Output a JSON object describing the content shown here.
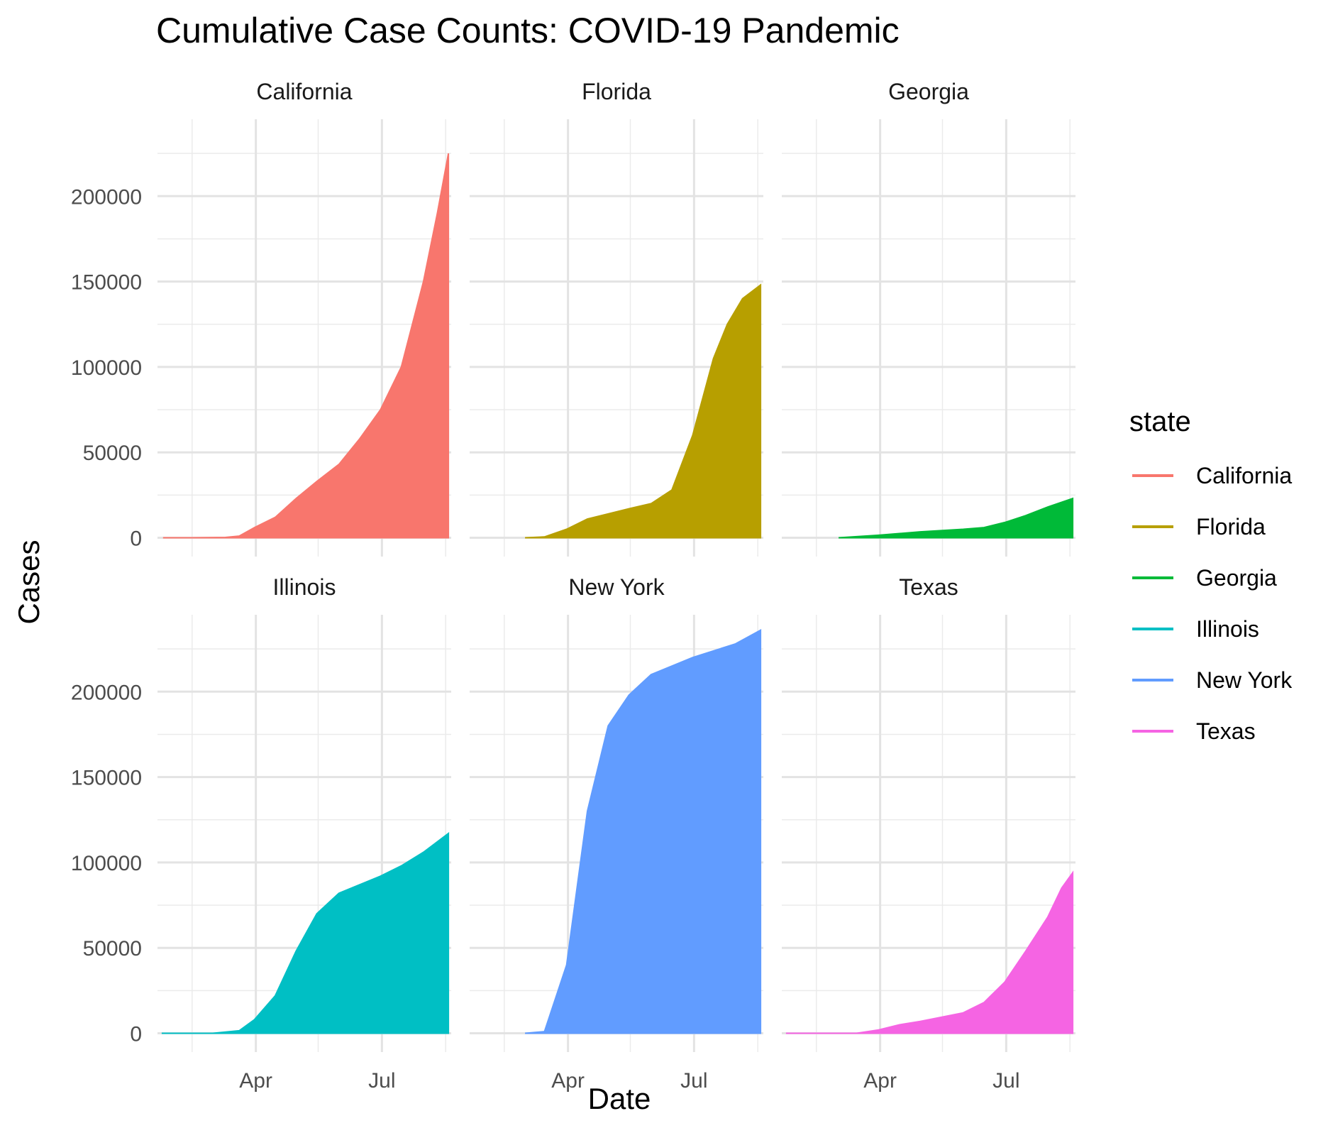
{
  "chart_data": {
    "type": "area",
    "title": "Cumulative Case Counts: COVID-19 Pandemic",
    "xlabel": "Date",
    "ylabel": "Cases",
    "x_ticks": [
      {
        "label": "Apr",
        "date": "2020-04-01"
      },
      {
        "label": "Jul",
        "date": "2020-07-01"
      }
    ],
    "y_ticks": [
      0,
      50000,
      100000,
      150000,
      200000
    ],
    "xlim": [
      "2020-01-21",
      "2020-08-20"
    ],
    "ylim": [
      -11000,
      245000
    ],
    "grid": true,
    "legend": {
      "title": "state",
      "position": "right",
      "entries": [
        "California",
        "Florida",
        "Georgia",
        "Illinois",
        "New York",
        "Texas"
      ]
    },
    "facets": [
      "California",
      "Florida",
      "Georgia",
      "Illinois",
      "New York",
      "Texas"
    ],
    "series": [
      {
        "name": "California",
        "color": "#F8766D",
        "points": [
          [
            "2020-01-25",
            0
          ],
          [
            "2020-02-15",
            0
          ],
          [
            "2020-03-10",
            200
          ],
          [
            "2020-03-20",
            1000
          ],
          [
            "2020-03-31",
            6000
          ],
          [
            "2020-04-15",
            12000
          ],
          [
            "2020-04-30",
            23000
          ],
          [
            "2020-05-15",
            33000
          ],
          [
            "2020-05-31",
            43000
          ],
          [
            "2020-06-15",
            58000
          ],
          [
            "2020-06-30",
            75000
          ],
          [
            "2020-07-15",
            100000
          ],
          [
            "2020-07-31",
            150000
          ],
          [
            "2020-08-10",
            190000
          ],
          [
            "2020-08-18",
            225000
          ]
        ]
      },
      {
        "name": "Florida",
        "color": "#B79F00",
        "points": [
          [
            "2020-03-01",
            0
          ],
          [
            "2020-03-15",
            500
          ],
          [
            "2020-03-31",
            5000
          ],
          [
            "2020-04-15",
            11000
          ],
          [
            "2020-04-30",
            14000
          ],
          [
            "2020-05-15",
            17000
          ],
          [
            "2020-05-31",
            20000
          ],
          [
            "2020-06-15",
            28000
          ],
          [
            "2020-06-30",
            60000
          ],
          [
            "2020-07-15",
            105000
          ],
          [
            "2020-07-25",
            125000
          ],
          [
            "2020-08-05",
            140000
          ],
          [
            "2020-08-18",
            148000
          ]
        ]
      },
      {
        "name": "Georgia",
        "color": "#00BA38",
        "points": [
          [
            "2020-03-02",
            0
          ],
          [
            "2020-03-31",
            1500
          ],
          [
            "2020-04-30",
            3500
          ],
          [
            "2020-05-31",
            5000
          ],
          [
            "2020-06-15",
            6000
          ],
          [
            "2020-06-30",
            9000
          ],
          [
            "2020-07-15",
            13000
          ],
          [
            "2020-07-31",
            18000
          ],
          [
            "2020-08-18",
            23000
          ]
        ]
      },
      {
        "name": "Illinois",
        "color": "#00BFC4",
        "points": [
          [
            "2020-01-24",
            0
          ],
          [
            "2020-03-01",
            0
          ],
          [
            "2020-03-20",
            1500
          ],
          [
            "2020-03-31",
            8000
          ],
          [
            "2020-04-15",
            22000
          ],
          [
            "2020-04-30",
            48000
          ],
          [
            "2020-05-15",
            70000
          ],
          [
            "2020-05-31",
            82000
          ],
          [
            "2020-06-15",
            87000
          ],
          [
            "2020-06-30",
            92000
          ],
          [
            "2020-07-15",
            98000
          ],
          [
            "2020-07-31",
            106000
          ],
          [
            "2020-08-18",
            117000
          ]
        ]
      },
      {
        "name": "New York",
        "color": "#619CFF",
        "points": [
          [
            "2020-03-01",
            0
          ],
          [
            "2020-03-15",
            1000
          ],
          [
            "2020-03-31",
            40000
          ],
          [
            "2020-04-15",
            130000
          ],
          [
            "2020-04-30",
            180000
          ],
          [
            "2020-05-15",
            198000
          ],
          [
            "2020-05-31",
            210000
          ],
          [
            "2020-06-30",
            220000
          ],
          [
            "2020-07-31",
            228000
          ],
          [
            "2020-08-18",
            236000
          ]
        ]
      },
      {
        "name": "Texas",
        "color": "#F564E3",
        "points": [
          [
            "2020-01-24",
            0
          ],
          [
            "2020-03-15",
            0
          ],
          [
            "2020-03-31",
            2000
          ],
          [
            "2020-04-15",
            5000
          ],
          [
            "2020-04-30",
            7000
          ],
          [
            "2020-05-31",
            12000
          ],
          [
            "2020-06-15",
            18000
          ],
          [
            "2020-06-30",
            30000
          ],
          [
            "2020-07-15",
            48000
          ],
          [
            "2020-07-31",
            68000
          ],
          [
            "2020-08-10",
            85000
          ],
          [
            "2020-08-18",
            94000
          ]
        ]
      }
    ]
  }
}
